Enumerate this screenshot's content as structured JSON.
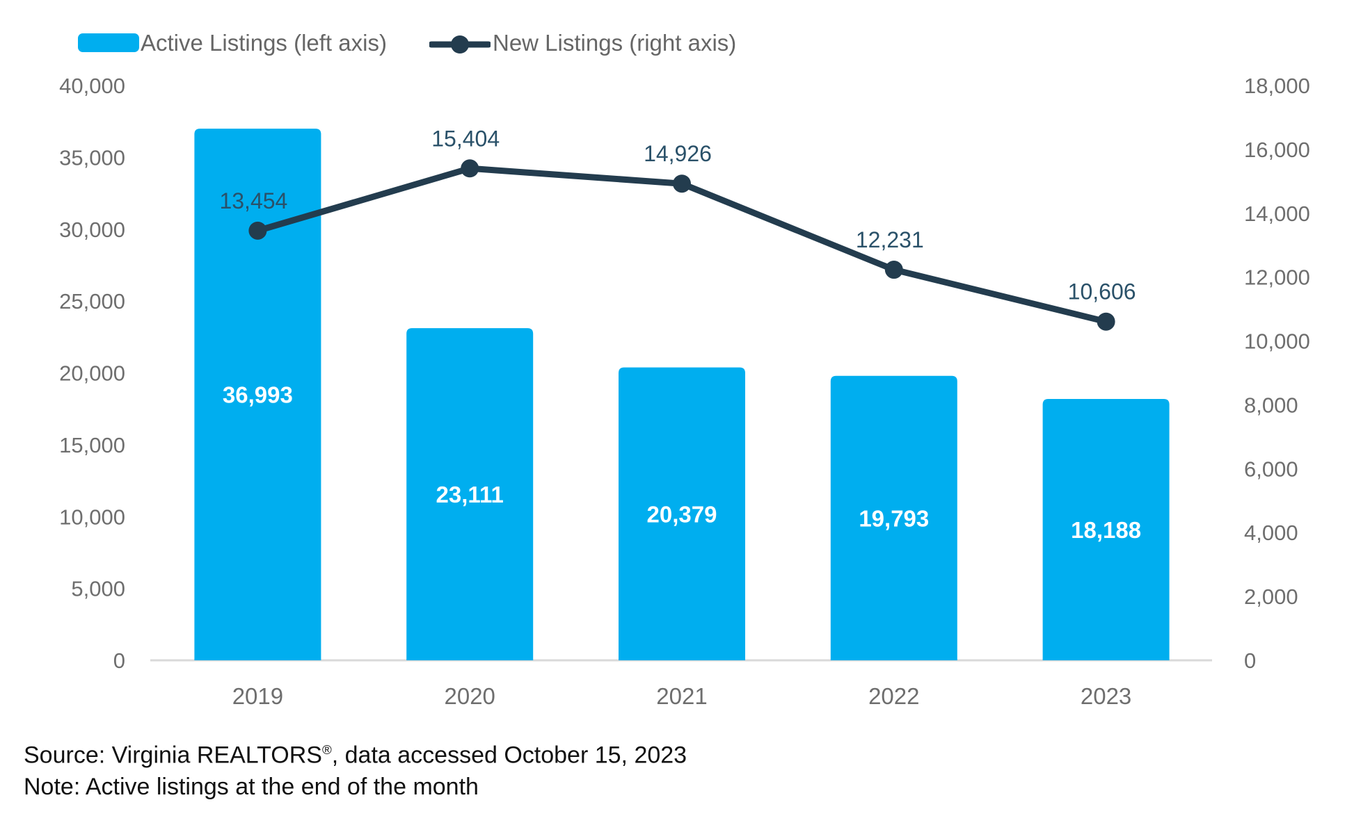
{
  "legend": {
    "items": [
      {
        "label": "Active Listings (left axis)"
      },
      {
        "label": "New Listings (right axis)"
      }
    ]
  },
  "chart_data": {
    "type": "combo-bar-line",
    "categories": [
      "2019",
      "2020",
      "2021",
      "2022",
      "2023"
    ],
    "series": [
      {
        "name": "Active Listings (left axis)",
        "type": "bar",
        "axis": "left",
        "color": "#00AEEF",
        "values": [
          36993,
          23111,
          20379,
          19793,
          18188
        ],
        "data_labels": [
          "36,993",
          "23,111",
          "20,379",
          "19,793",
          "18,188"
        ],
        "data_label_color": "#FFFFFF"
      },
      {
        "name": "New Listings (right axis)",
        "type": "line",
        "axis": "right",
        "color": "#233C4E",
        "values": [
          13454,
          15404,
          14926,
          12231,
          10606
        ],
        "data_labels": [
          "13,454",
          "15,404",
          "14,926",
          "12,231",
          "10,606"
        ],
        "data_label_color": "#2A5169"
      }
    ],
    "left_axis": {
      "min": 0,
      "max": 40000,
      "step": 5000,
      "tick_labels": [
        "0",
        "5,000",
        "10,000",
        "15,000",
        "20,000",
        "25,000",
        "30,000",
        "35,000",
        "40,000"
      ]
    },
    "right_axis": {
      "min": 0,
      "max": 18000,
      "step": 2000,
      "tick_labels": [
        "0",
        "2,000",
        "4,000",
        "6,000",
        "8,000",
        "10,000",
        "12,000",
        "14,000",
        "16,000",
        "18,000"
      ]
    },
    "grid": false,
    "legend_position": "top-left",
    "axis_text_color": "#6E6E6E",
    "baseline_color": "#D9D9D9"
  },
  "footer": {
    "source_prefix": "Source: Virginia REALTORS",
    "source_reg": "®",
    "source_suffix": ", data accessed October 15, 2023",
    "note": "Note: Active listings at the end of the month"
  }
}
